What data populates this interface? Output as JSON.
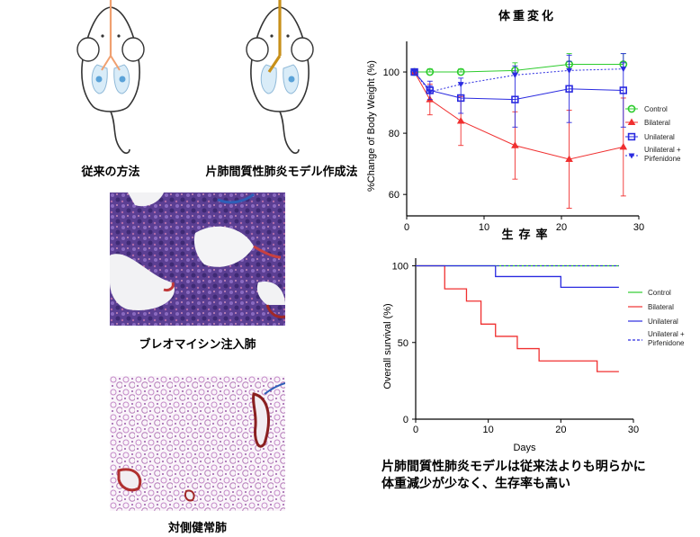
{
  "captions": {
    "conventional_method": "従来の方法",
    "model_method": "片肺間質性肺炎モデル作成法",
    "bleomycin_lung": "ブレオマイシン注入肺",
    "contralateral_lung": "対側健常肺"
  },
  "conclusion": {
    "line1": "片肺間質性肺炎モデルは従来法よりも明らかに",
    "line2": "体重減少が少なく、生存率も高い"
  },
  "colors": {
    "control": "#2ecc2e",
    "bilateral": "#f03030",
    "unilateral": "#2a2ae0",
    "unilateral_pirfenidone": "#2a2ae0"
  },
  "chart_data": [
    {
      "type": "line",
      "title": "体重変化",
      "xlabel": "生存率",
      "ylabel": "%Change of Body Weight (%)",
      "xlim": [
        0,
        30
      ],
      "ylim": [
        53,
        110
      ],
      "xticks": [
        "0",
        "10",
        "20",
        "30"
      ],
      "yticks": [
        "60",
        "80",
        "100"
      ],
      "legend_position": "right",
      "series": [
        {
          "name": "Control",
          "x": [
            1,
            3,
            7,
            14,
            21,
            28
          ],
          "y": [
            100,
            100,
            100,
            100.5,
            102.5,
            102.5
          ],
          "err": [
            0,
            1,
            1,
            2.5,
            3.5,
            3.5
          ]
        },
        {
          "name": "Bilateral",
          "x": [
            1,
            3,
            7,
            14,
            21,
            28
          ],
          "y": [
            100,
            91,
            84,
            76,
            71.5,
            75.5
          ],
          "err": [
            0,
            5,
            8,
            11,
            16,
            16
          ]
        },
        {
          "name": "Unilateral",
          "x": [
            1,
            3,
            7,
            14,
            21,
            28
          ],
          "y": [
            100,
            94,
            91.5,
            91,
            94.5,
            94
          ],
          "err": [
            0,
            3,
            5,
            9,
            11,
            12
          ]
        },
        {
          "name": "Unilateral + Pirfenidone",
          "x": [
            1,
            3,
            7,
            14,
            21,
            28
          ],
          "y": [
            100,
            93.5,
            96,
            99,
            100.5,
            101
          ],
          "err": [
            0,
            2,
            2,
            3,
            3,
            2
          ]
        }
      ]
    },
    {
      "type": "line",
      "title": "",
      "xlabel": "Days",
      "ylabel": "Overall survival (%)",
      "xlim": [
        0,
        30
      ],
      "ylim": [
        0,
        105
      ],
      "xticks": [
        "0",
        "10",
        "20",
        "30"
      ],
      "yticks": [
        "0",
        "50",
        "100"
      ],
      "legend_position": "right",
      "series": [
        {
          "name": "Control",
          "x": [
            0,
            28
          ],
          "y": [
            100,
            100
          ]
        },
        {
          "name": "Bilateral",
          "x": [
            0,
            4,
            4,
            7,
            7,
            9,
            9,
            11,
            11,
            14,
            14,
            17,
            17,
            25,
            25,
            28
          ],
          "y": [
            100,
            100,
            85,
            85,
            77,
            77,
            62,
            62,
            54,
            54,
            46,
            46,
            38,
            38,
            31,
            31
          ]
        },
        {
          "name": "Unilateral",
          "x": [
            0,
            11,
            11,
            20,
            20,
            28
          ],
          "y": [
            100,
            100,
            93,
            93,
            86,
            86
          ]
        },
        {
          "name": "Unilateral + Pirfenidone",
          "x": [
            0,
            28
          ],
          "y": [
            100,
            100
          ]
        }
      ]
    }
  ]
}
